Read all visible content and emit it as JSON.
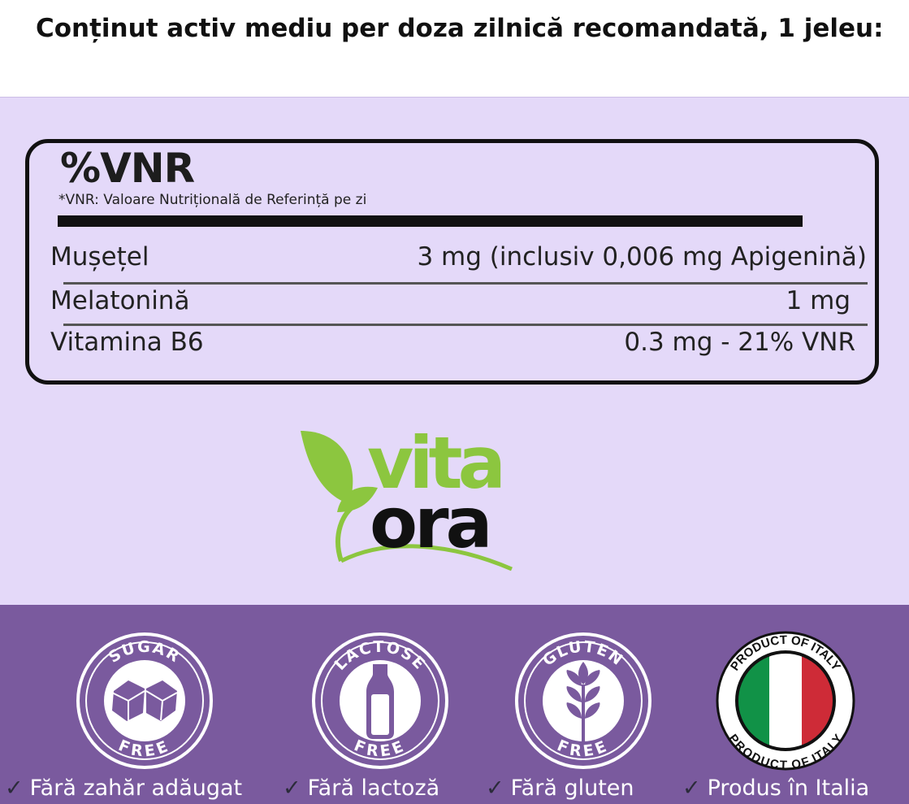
{
  "header": {
    "title": "Conținut activ mediu per doza zilnică recomandată, 1 jeleu:"
  },
  "table": {
    "heading": "%VNR",
    "note": "*VNR: Valoare Nutrițională de Referință pe zi",
    "rows": [
      {
        "name": "Mușețel",
        "value": "3 mg (inclusiv 0,006 mg Apigenină)"
      },
      {
        "name": "Melatonină",
        "value": "1 mg"
      },
      {
        "name": "Vitamina B6",
        "value": "0.3 mg - 21% VNR"
      }
    ]
  },
  "logo": {
    "line1": "vita",
    "line2": "ora",
    "colors": {
      "green": "#8cc63f",
      "dark": "#111111"
    }
  },
  "badges": [
    {
      "top": "SUGAR",
      "bottom": "FREE",
      "icon": "sugar-cubes-icon",
      "label": "Fără zahăr adăugat"
    },
    {
      "top": "LACTOSE",
      "bottom": "FREE",
      "icon": "milk-bottle-icon",
      "label": "Fără lactoză"
    },
    {
      "top": "GLUTEN",
      "bottom": "FREE",
      "icon": "wheat-icon",
      "label": "Fără gluten"
    },
    {
      "top": "PRODUCT OF ITALY",
      "bottom": "PRODUCT OF ITALY",
      "icon": "italy-flag-icon",
      "label": "Produs în Italia"
    }
  ],
  "check_icon": "✓",
  "colors": {
    "background": "#e4d9f9",
    "footer": "#7a5a9e",
    "flag_green": "#119247",
    "flag_red": "#ce2b37"
  }
}
